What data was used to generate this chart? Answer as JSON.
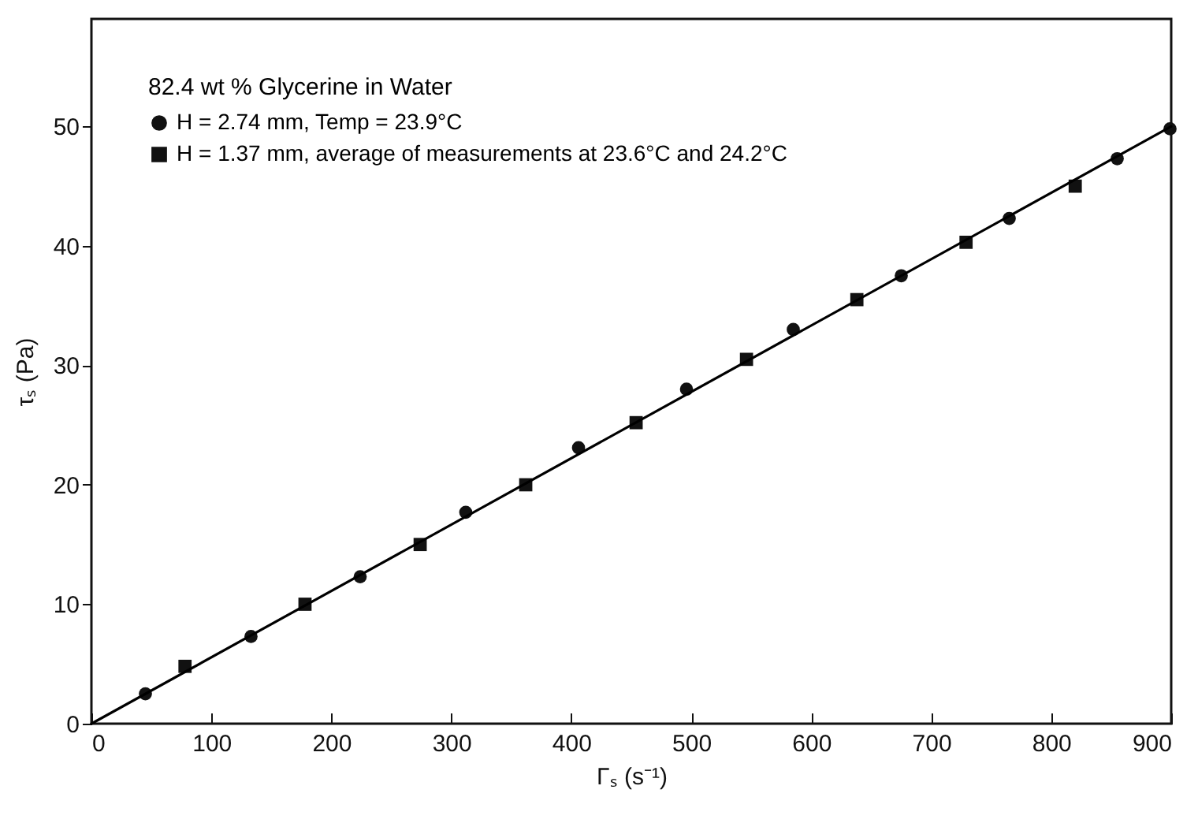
{
  "chart_data": {
    "type": "scatter",
    "xlabel": "Γₛ (s⁻¹)",
    "ylabel": "τₛ (Pa)",
    "legend_title": "82.4 wt % Glycerine in Water",
    "xlim": [
      0,
      900
    ],
    "ylim": [
      0,
      59
    ],
    "xticks": [
      0,
      100,
      200,
      300,
      400,
      500,
      600,
      700,
      800,
      900
    ],
    "yticks": [
      0,
      10,
      20,
      30,
      40,
      50
    ],
    "grid": false,
    "legend": "top left",
    "series": [
      {
        "name": "H = 2.74 mm, Temp = 23.9°C",
        "type": "scatter",
        "marker": "circle",
        "color": "#111111",
        "x": [
          45,
          133,
          224,
          312,
          406,
          496,
          585,
          675,
          765,
          855,
          899
        ],
        "values": [
          2.5,
          7.3,
          12.3,
          17.7,
          23.1,
          28,
          33,
          37.5,
          42.3,
          47.3,
          49.8
        ]
      },
      {
        "name": "H = 1.37 mm, average of measurements at 23.6°C and 24.2°C",
        "type": "scatter",
        "marker": "square",
        "color": "#111111",
        "x": [
          78,
          178,
          274,
          362,
          454,
          546,
          638,
          729,
          820
        ],
        "values": [
          4.8,
          10,
          15,
          20,
          25.2,
          30.5,
          35.5,
          40.3,
          45
        ]
      },
      {
        "type": "line",
        "marker": "none",
        "line_style": "solid",
        "color": "#000000",
        "x": [
          0,
          900
        ],
        "values": [
          0,
          50
        ]
      }
    ]
  }
}
